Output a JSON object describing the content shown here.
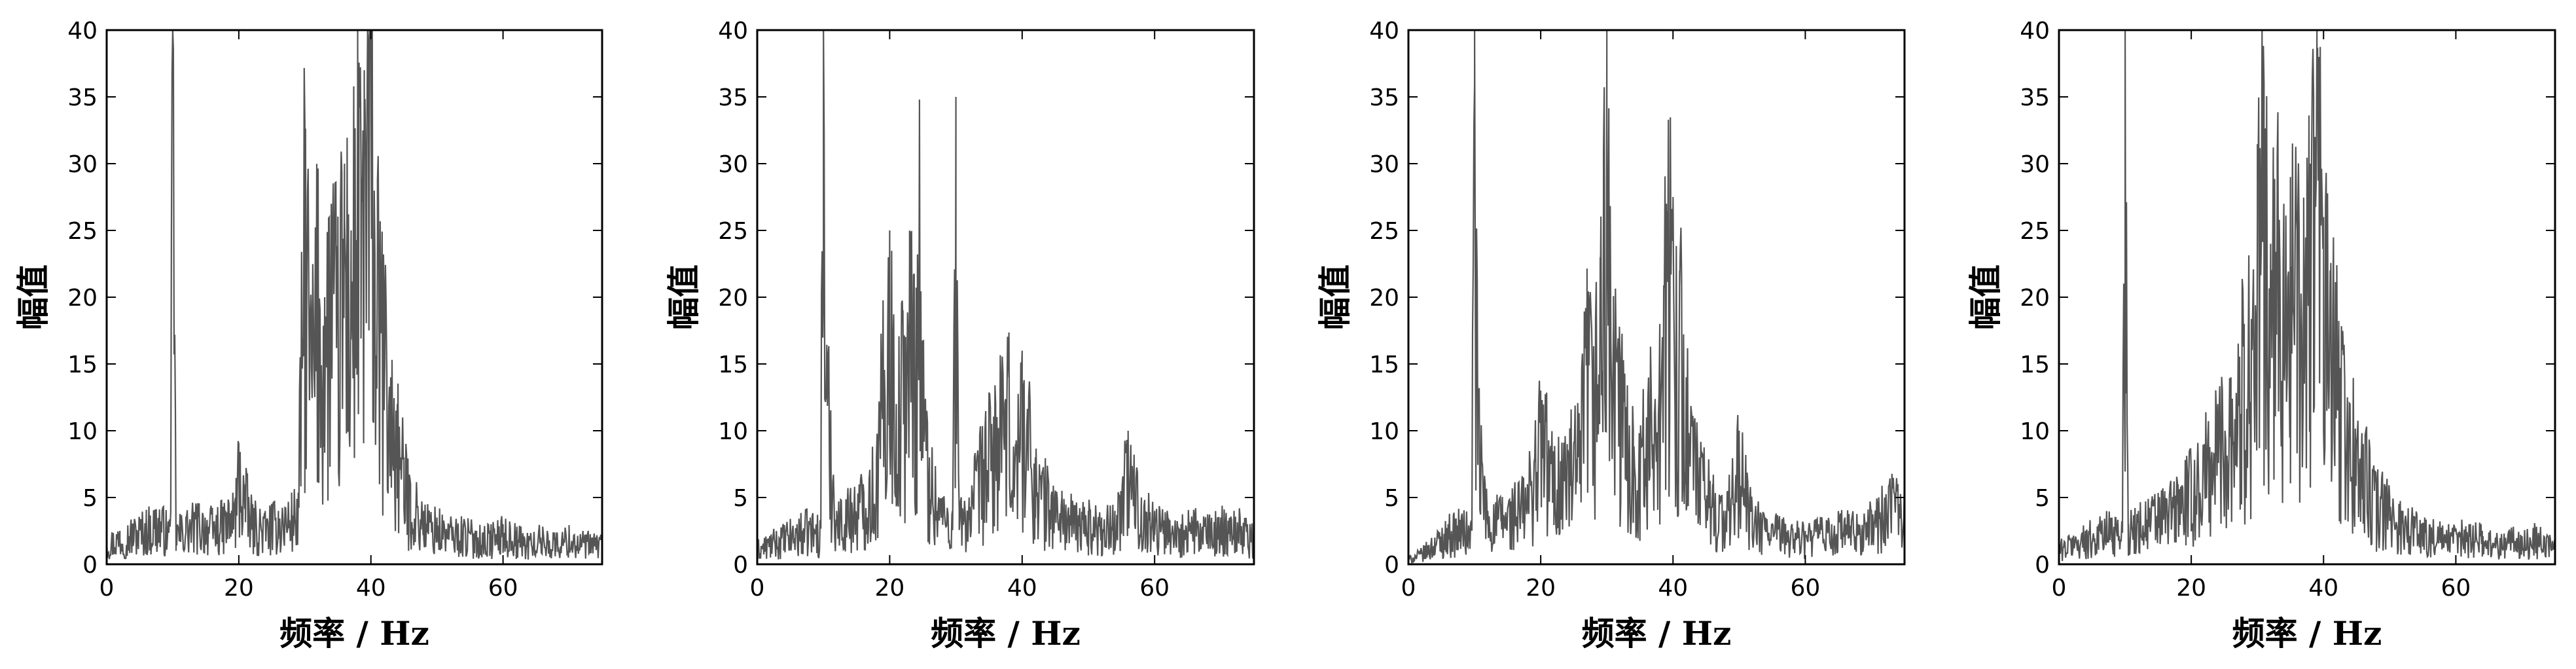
{
  "chart_data": [
    {
      "type": "line",
      "xlabel": "频率 / Hz",
      "ylabel": "幅值",
      "xlim": [
        0,
        75
      ],
      "ylim": [
        0,
        40
      ],
      "xticks": [
        0,
        20,
        40,
        60
      ],
      "yticks": [
        0,
        5,
        10,
        15,
        20,
        25,
        30,
        35,
        40
      ],
      "grid": false,
      "series": [
        {
          "x": [
            0,
            2,
            4,
            6,
            8,
            9.5,
            10,
            10.5,
            12,
            14,
            16,
            18,
            19.5,
            20,
            21,
            22,
            24,
            26,
            28,
            29,
            30,
            31,
            32,
            33,
            34,
            35,
            36,
            37,
            38,
            38.5,
            39,
            40,
            41,
            42,
            43,
            44,
            45,
            46,
            48,
            50,
            52,
            54,
            56,
            58,
            60,
            62,
            64,
            66,
            68,
            70,
            72,
            74,
            75
          ],
          "values": [
            2,
            2.5,
            3,
            3.5,
            4,
            3,
            40,
            3,
            3.5,
            4,
            3.5,
            4,
            5,
            9,
            6,
            4,
            3.5,
            4,
            4.5,
            5,
            33,
            18,
            26,
            20,
            27,
            22,
            30,
            25,
            36,
            30,
            37,
            40,
            25,
            20,
            14,
            12,
            8,
            6,
            4,
            3.5,
            3,
            3,
            2.5,
            2.5,
            3,
            2.5,
            2,
            2.5,
            2,
            2.5,
            2,
            2,
            2
          ]
        }
      ]
    },
    {
      "type": "line",
      "xlabel": "频率 / Hz",
      "ylabel": "幅值",
      "xlim": [
        0,
        75
      ],
      "ylim": [
        0,
        40
      ],
      "xticks": [
        0,
        20,
        40,
        60
      ],
      "yticks": [
        0,
        5,
        10,
        15,
        20,
        25,
        30,
        35,
        40
      ],
      "grid": false,
      "series": [
        {
          "x": [
            0,
            2,
            4,
            6,
            8,
            9.5,
            10,
            10.5,
            12,
            14,
            16,
            18,
            20,
            21,
            22,
            23,
            24,
            24.5,
            25,
            26,
            28,
            29.5,
            30,
            30.5,
            32,
            34,
            36,
            38,
            39,
            40,
            42,
            44,
            46,
            48,
            50,
            52,
            54,
            56,
            58,
            60,
            62,
            64,
            66,
            68,
            70,
            72,
            74,
            75
          ],
          "values": [
            1.5,
            2,
            2.5,
            3,
            3.5,
            3,
            40,
            16,
            4,
            5,
            6,
            8,
            25,
            12,
            18,
            23,
            20,
            34,
            15,
            8,
            5,
            4,
            35,
            4,
            5,
            9,
            12,
            14,
            9,
            16,
            8,
            6,
            5,
            4,
            4,
            3.5,
            4,
            9,
            5,
            4,
            3.5,
            3,
            3.5,
            3,
            3.5,
            4,
            3,
            2.5
          ]
        }
      ]
    },
    {
      "type": "line",
      "xlabel": "频率 / Hz",
      "ylabel": "幅值",
      "xlim": [
        0,
        75
      ],
      "ylim": [
        0,
        40
      ],
      "xticks": [
        0,
        20,
        40,
        60
      ],
      "yticks": [
        0,
        5,
        10,
        15,
        20,
        25,
        30,
        35,
        40
      ],
      "grid": false,
      "series": [
        {
          "x": [
            0,
            2,
            4,
            6,
            8,
            9.5,
            10,
            10.5,
            12,
            14,
            16,
            18,
            20,
            22,
            24,
            26,
            27,
            28,
            29,
            29.5,
            30,
            30.5,
            31,
            32,
            34,
            36,
            38,
            39,
            40,
            41,
            42,
            44,
            46,
            48,
            50,
            52,
            54,
            56,
            58,
            60,
            62,
            64,
            66,
            68,
            70,
            72,
            74,
            75
          ],
          "values": [
            0.5,
            1,
            2,
            3,
            3.5,
            3,
            40,
            12,
            4,
            4.5,
            5,
            6,
            13,
            8,
            9,
            10,
            20,
            15,
            23,
            27,
            40,
            22,
            18,
            15,
            10,
            11,
            18,
            27,
            27,
            22,
            14,
            8,
            6,
            4,
            10,
            4,
            3.5,
            3,
            3,
            2.5,
            3,
            3,
            3.5,
            3,
            4,
            5,
            6,
            7
          ]
        }
      ]
    },
    {
      "type": "line",
      "xlabel": "频率 / Hz",
      "ylabel": "幅值",
      "xlim": [
        0,
        75
      ],
      "ylim": [
        0,
        40
      ],
      "xticks": [
        0,
        20,
        40,
        60
      ],
      "yticks": [
        0,
        5,
        10,
        15,
        20,
        25,
        30,
        35,
        40
      ],
      "grid": false,
      "series": [
        {
          "x": [
            0,
            2,
            4,
            6,
            8,
            9.5,
            10,
            10.5,
            12,
            14,
            16,
            18,
            20,
            22,
            24,
            26,
            28,
            30,
            31,
            32,
            33,
            34,
            35,
            36,
            37,
            38,
            38.5,
            39,
            40,
            41,
            42,
            44,
            46,
            48,
            50,
            52,
            54,
            56,
            58,
            60,
            62,
            64,
            66,
            68,
            70,
            72,
            74,
            75
          ],
          "values": [
            1.5,
            2,
            2.5,
            3,
            3.5,
            3,
            40,
            3,
            4,
            4.5,
            5,
            6,
            7,
            9,
            12,
            14,
            18,
            26,
            36,
            24,
            28,
            27,
            29,
            25,
            24,
            30,
            35,
            40,
            26,
            22,
            18,
            12,
            9,
            6,
            5,
            4,
            3.5,
            3,
            2.5,
            2.5,
            3,
            2.5,
            2,
            2.5,
            2,
            2.5,
            2,
            2
          ]
        }
      ]
    }
  ]
}
